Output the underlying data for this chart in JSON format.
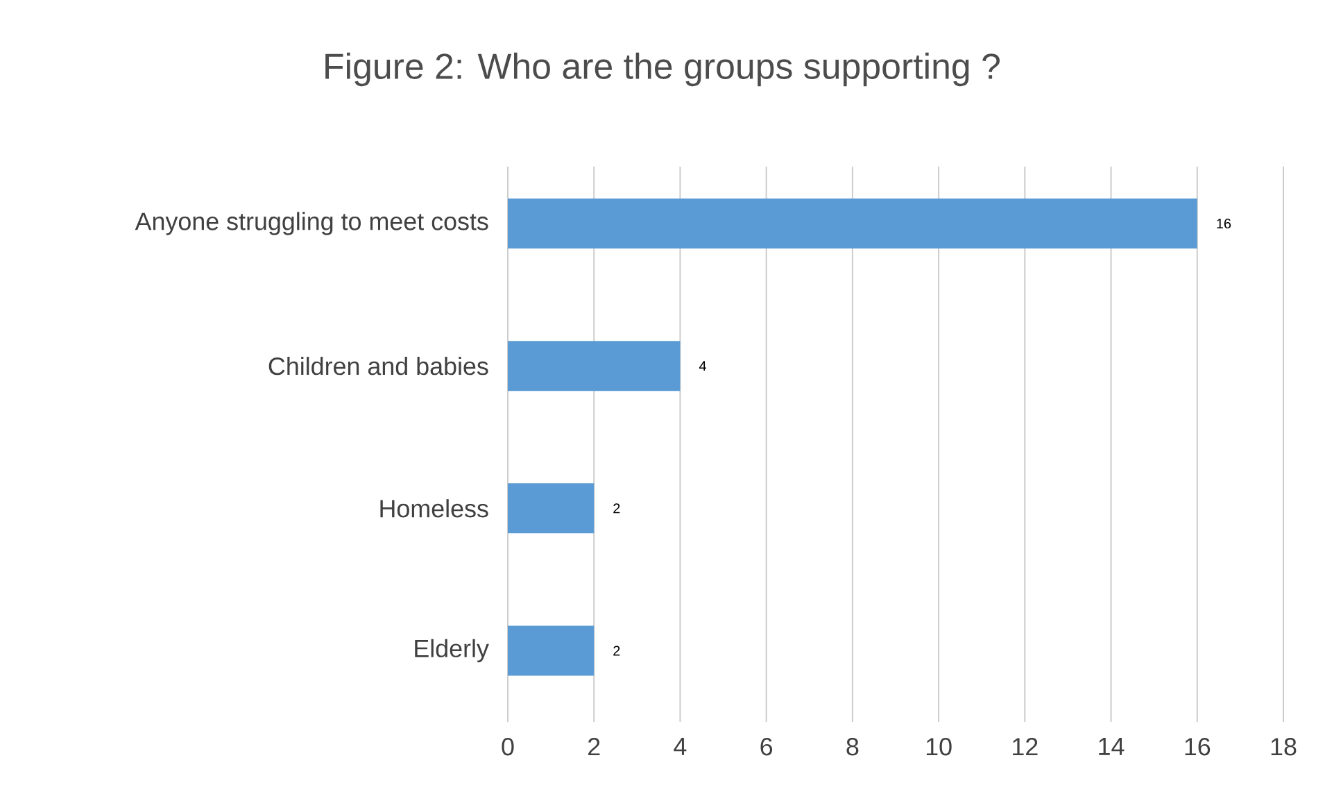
{
  "chart_data": {
    "type": "bar",
    "orientation": "horizontal",
    "title": "Figure 2: Who are the groups supporting ?",
    "categories": [
      "Anyone struggling to meet costs",
      "Children and babies",
      "Homeless",
      "Elderly"
    ],
    "values": [
      16,
      4,
      2,
      2
    ],
    "color": "#5b9bd5",
    "xlim": [
      0,
      18
    ],
    "xticks": [
      0,
      2,
      4,
      6,
      8,
      10,
      12,
      14,
      16,
      18
    ],
    "grid": "x",
    "data_labels": true
  }
}
